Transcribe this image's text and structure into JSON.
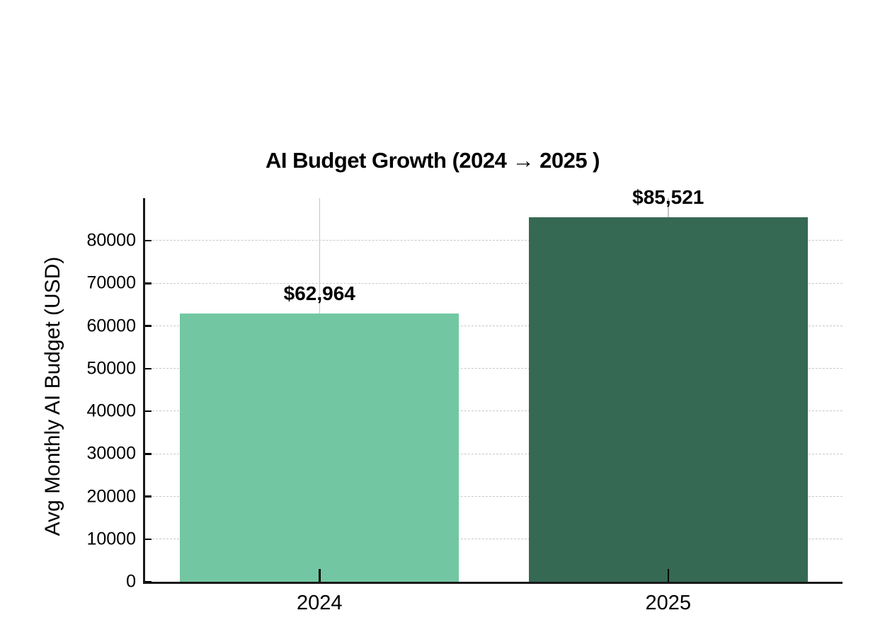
{
  "chart_data": {
    "type": "bar",
    "title": "AI Budget Growth (2024 → 2025 )",
    "ylabel": "Avg Monthly AI Budget (USD)",
    "xlabel": "",
    "categories": [
      "2024",
      "2025"
    ],
    "values": [
      62964,
      85521
    ],
    "value_labels": [
      "$62,964",
      "$85,521"
    ],
    "bar_colors": [
      "#72c7a2",
      "#356954"
    ],
    "ylim": [
      0,
      90000
    ],
    "yticks": [
      0,
      10000,
      20000,
      30000,
      40000,
      50000,
      60000,
      70000,
      80000
    ],
    "ytick_labels": [
      "0",
      "10000",
      "20000",
      "30000",
      "40000",
      "50000",
      "60000",
      "70000",
      "80000"
    ],
    "bar_width_fraction": 0.8,
    "grid": {
      "horizontal": true,
      "vertical_at_categories": true,
      "style": "dashed",
      "color": "#c9c9c9"
    },
    "legend": "none",
    "background_color": "#ffffff",
    "axis_color": "#1a1a1a",
    "text_color": "#000000"
  }
}
